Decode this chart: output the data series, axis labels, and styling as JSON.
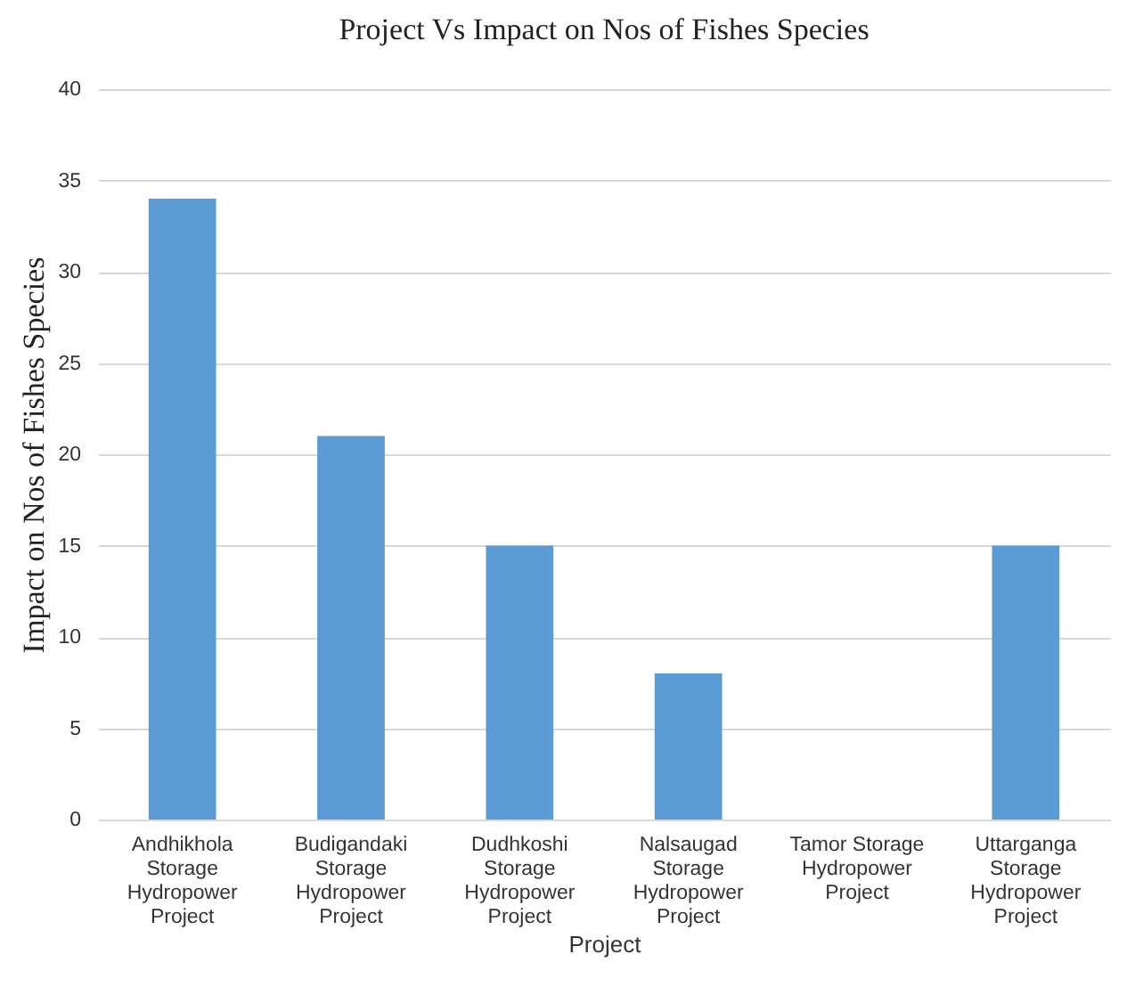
{
  "chart_data": {
    "type": "bar",
    "title": "Project Vs  Impact on Nos of Fishes Species",
    "xlabel": "Project",
    "ylabel": "Impact on Nos of Fishes Species",
    "categories": [
      "Andhikhola Storage Hydropower Project",
      "Budigandaki Storage Hydropower Project",
      "Dudhkoshi Storage Hydropower Project",
      "Nalsaugad Storage Hydropower Project",
      "Tamor Storage Hydropower Project",
      "Uttarganga Storage Hydropower Project"
    ],
    "values": [
      34,
      21,
      15,
      8,
      0,
      15
    ],
    "color": "#5b9bd5",
    "ylim": [
      0,
      40
    ],
    "yticks": [
      0,
      5,
      10,
      15,
      20,
      25,
      30,
      35,
      40
    ],
    "grid": "y"
  }
}
